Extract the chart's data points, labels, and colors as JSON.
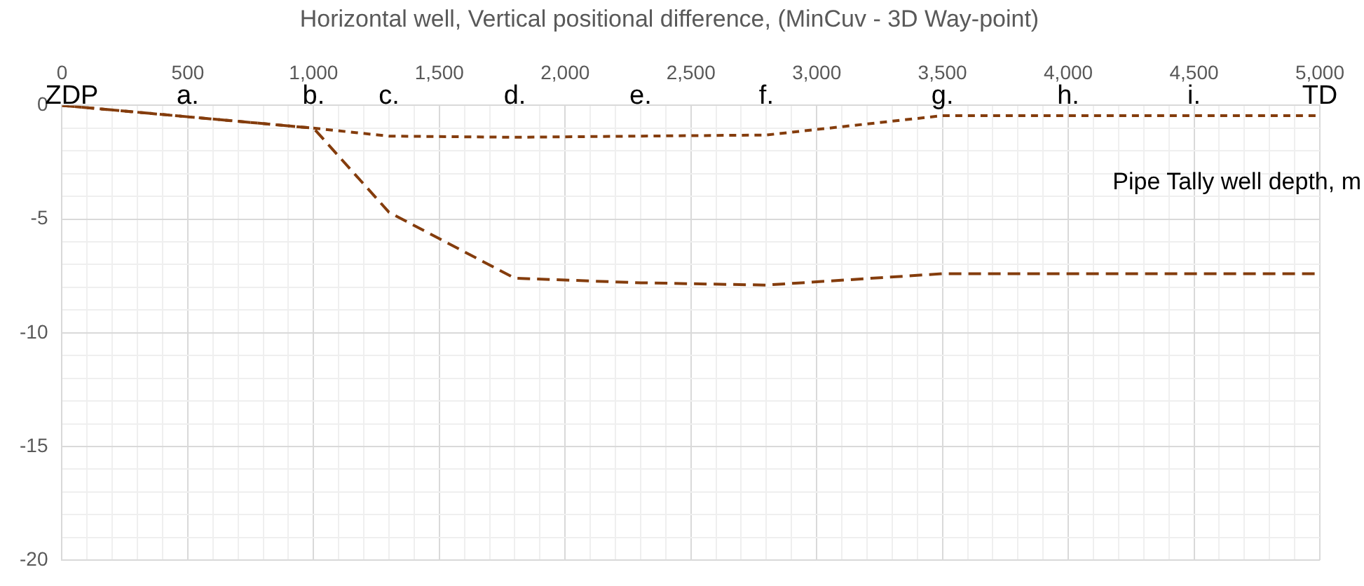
{
  "chart_data": {
    "type": "line",
    "title": "Horizontal well, Vertical positional difference, (MinCuv - 3D Way-point)",
    "xlabel": "Pipe Tally well depth, m",
    "x": [
      0,
      500,
      1000,
      1300,
      1800,
      2300,
      2800,
      3500,
      4000,
      4500,
      5000
    ],
    "series": [
      {
        "color": "#843c0c",
        "values": [
          0,
          -0.5,
          -1.0,
          -4.7,
          -7.6,
          -7.8,
          -7.9,
          -7.4,
          -7.4,
          -7.4,
          -7.4
        ]
      },
      {
        "color": "#843c0c",
        "values": [
          0,
          -0.5,
          -1.0,
          -1.35,
          -1.4,
          -1.35,
          -1.3,
          -0.45,
          -0.45,
          -0.45,
          -0.45
        ]
      }
    ],
    "xlim": [
      0,
      5000
    ],
    "xticks": [
      0,
      {
        "value": 100,
        "label": null
      },
      {
        "value": 200,
        "label": null
      },
      {
        "value": 300,
        "label": null
      },
      {
        "value": 400,
        "label": null
      },
      500,
      {
        "value": 600,
        "label": null
      },
      {
        "value": 700,
        "label": null
      },
      {
        "value": 800,
        "label": null
      },
      {
        "value": 900,
        "label": null
      },
      {
        "value": 1000,
        "label": "1,000"
      },
      {
        "value": 1100,
        "label": null
      },
      {
        "value": 1200,
        "label": null
      },
      {
        "value": 1300,
        "label": null
      },
      {
        "value": 1400,
        "label": null
      },
      {
        "value": 1500,
        "label": "1,500"
      },
      {
        "value": 1600,
        "label": null
      },
      {
        "value": 1700,
        "label": null
      },
      {
        "value": 1800,
        "label": null
      },
      {
        "value": 1900,
        "label": null
      },
      {
        "value": 2000,
        "label": "2,000"
      },
      {
        "value": 2100,
        "label": null
      },
      {
        "value": 2200,
        "label": null
      },
      {
        "value": 2300,
        "label": null
      },
      {
        "value": 2400,
        "label": null
      },
      {
        "value": 2500,
        "label": "2,500"
      },
      {
        "value": 2600,
        "label": null
      },
      {
        "value": 2700,
        "label": null
      },
      {
        "value": 2800,
        "label": null
      },
      {
        "value": 2900,
        "label": null
      },
      {
        "value": 3000,
        "label": "3,000"
      },
      {
        "value": 3100,
        "label": null
      },
      {
        "value": 3200,
        "label": null
      },
      {
        "value": 3300,
        "label": null
      },
      {
        "value": 3400,
        "label": null
      },
      {
        "value": 3500,
        "label": "3,500"
      },
      {
        "value": 3600,
        "label": null
      },
      {
        "value": 3700,
        "label": null
      },
      {
        "value": 3800,
        "label": null
      },
      {
        "value": 3900,
        "label": null
      },
      {
        "value": 4000,
        "label": "4,000"
      },
      {
        "value": 4100,
        "label": null
      },
      {
        "value": 4200,
        "label": null
      },
      {
        "value": 4300,
        "label": null
      },
      {
        "value": 4400,
        "label": null
      },
      {
        "value": 4500,
        "label": "4,500"
      },
      {
        "value": 4600,
        "label": null
      },
      {
        "value": 4700,
        "label": null
      },
      {
        "value": 4800,
        "label": null
      },
      {
        "value": 4900,
        "label": null
      },
      {
        "value": 5000,
        "label": "5,000"
      }
    ],
    "ylim": [
      -20,
      0
    ],
    "yticks": [
      -20,
      {
        "value": -19,
        "label": null
      },
      {
        "value": -18,
        "label": null
      },
      {
        "value": -17,
        "label": null
      },
      {
        "value": -16,
        "label": null
      },
      -15,
      {
        "value": -14,
        "label": null
      },
      {
        "value": -13,
        "label": null
      },
      {
        "value": -12,
        "label": null
      },
      {
        "value": -11,
        "label": null
      },
      -10,
      {
        "value": -9,
        "label": null
      },
      {
        "value": -8,
        "label": null
      },
      {
        "value": -7,
        "label": null
      },
      {
        "value": -6,
        "label": null
      },
      -5,
      {
        "value": -4,
        "label": null
      },
      {
        "value": -3,
        "label": null
      },
      {
        "value": -2,
        "label": null
      },
      {
        "value": -1,
        "label": null
      },
      0
    ],
    "annotations": [
      "ZDP",
      "a.",
      "b.",
      "c.",
      "d.",
      "e.",
      "f.",
      "g.",
      "h.",
      "i.",
      "TD"
    ],
    "grid": true,
    "legend": false,
    "marker": "none",
    "line_style": "dashed"
  }
}
